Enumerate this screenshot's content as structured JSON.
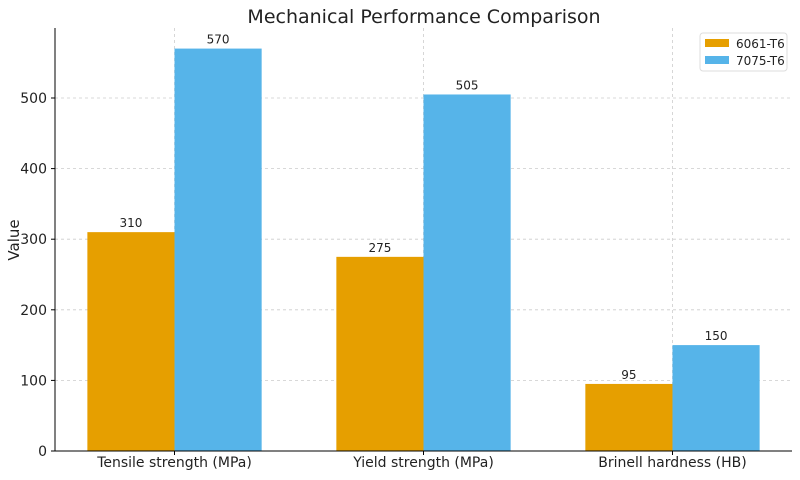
{
  "chart_data": {
    "type": "bar",
    "title": "Mechanical Performance Comparison",
    "xlabel": "",
    "ylabel": "Value",
    "categories": [
      "Tensile strength (MPa)",
      "Yield strength (MPa)",
      "Brinell hardness (HB)"
    ],
    "series": [
      {
        "name": "6061-T6",
        "values": [
          310,
          275,
          95
        ],
        "color": "#E69F00"
      },
      {
        "name": "7075-T6",
        "values": [
          570,
          505,
          150
        ],
        "color": "#56B4E9"
      }
    ],
    "ylim": [
      0,
      600
    ],
    "yticks": [
      0,
      100,
      200,
      300,
      400,
      500
    ],
    "grid": true,
    "legend": "top-right"
  }
}
